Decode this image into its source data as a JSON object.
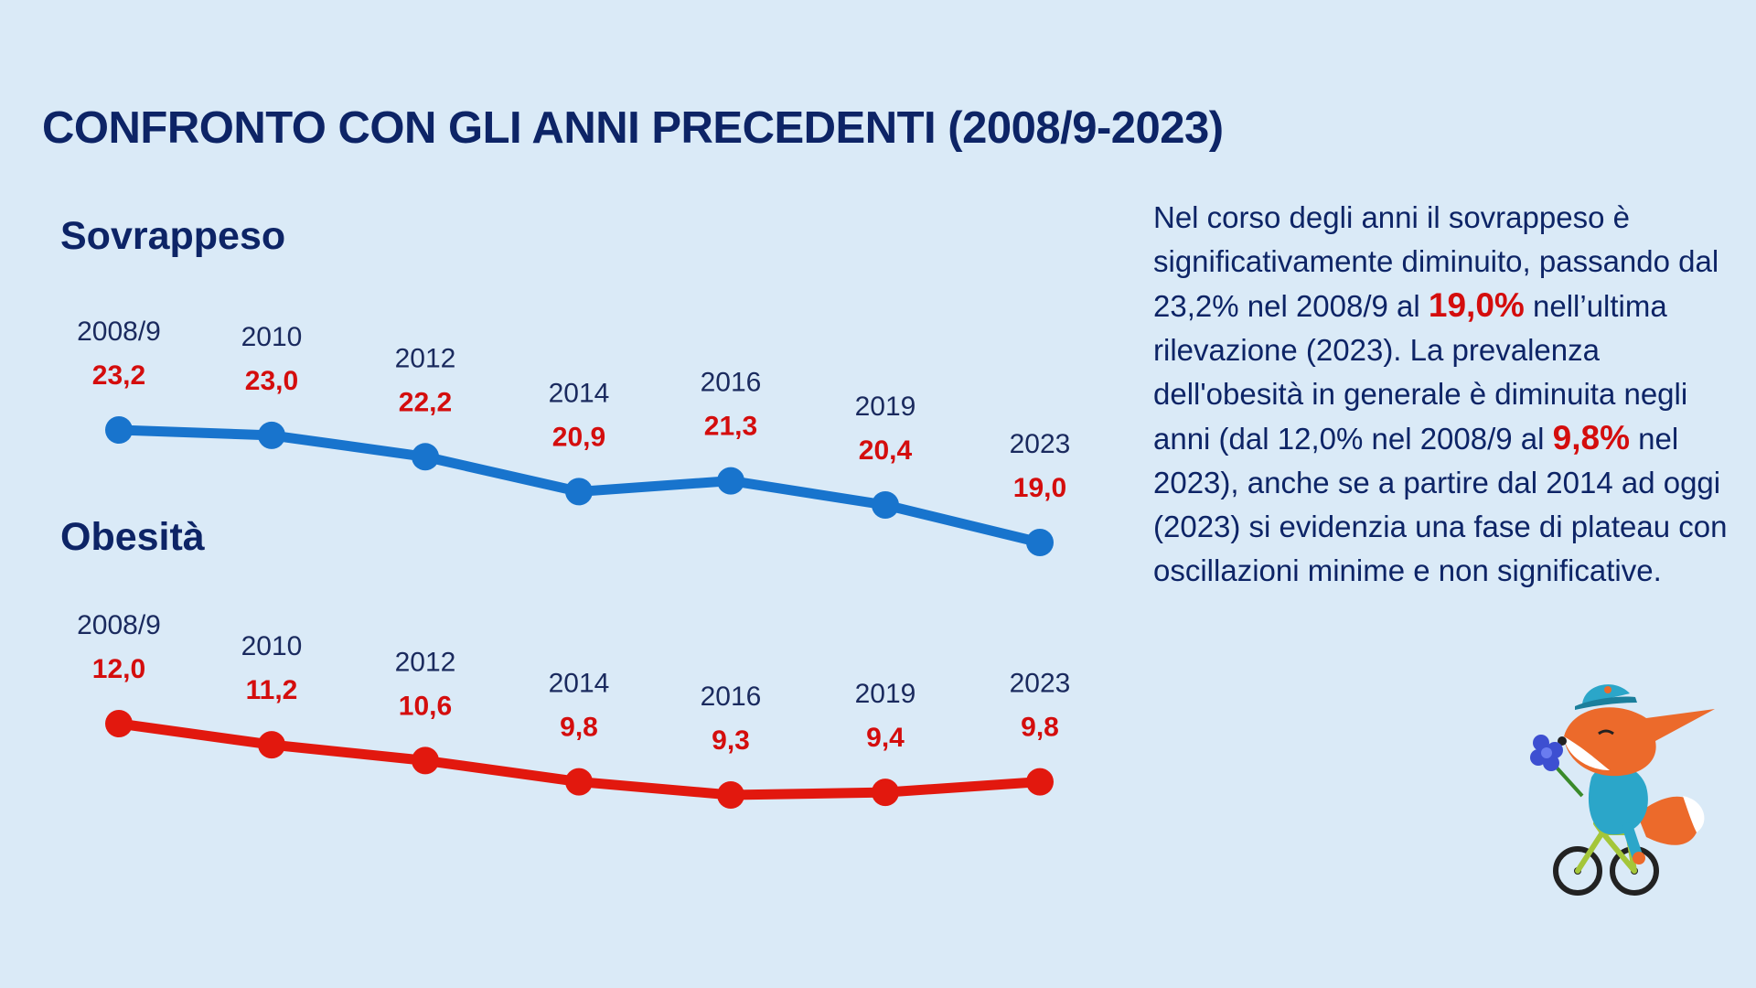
{
  "title": "CONFRONTO CON GLI ANNI PRECEDENTI (2008/9-2023)",
  "chart_data": [
    {
      "type": "line",
      "title": "Sovrappeso",
      "categories": [
        "2008/9",
        "2010",
        "2012",
        "2014",
        "2016",
        "2019",
        "2023"
      ],
      "values": [
        23.2,
        23.0,
        22.2,
        20.9,
        21.3,
        20.4,
        19.0
      ],
      "value_labels": [
        "23,2",
        "23,0",
        "22,2",
        "20,9",
        "21,3",
        "20,4",
        "19,0"
      ],
      "color": "#1874cd",
      "axes": "hidden",
      "grid": false
    },
    {
      "type": "line",
      "title": "Obesità",
      "categories": [
        "2008/9",
        "2010",
        "2012",
        "2014",
        "2016",
        "2019",
        "2023"
      ],
      "values": [
        12.0,
        11.2,
        10.6,
        9.8,
        9.3,
        9.4,
        9.8
      ],
      "value_labels": [
        "12,0",
        "11,2",
        "10,6",
        "9,8",
        "9,3",
        "9,4",
        "9,8"
      ],
      "color": "#e2180e",
      "axes": "hidden",
      "grid": false
    }
  ],
  "description": {
    "part1": "Nel corso degli anni il sovrappeso è significativamente diminuito, passando dal 23,2% nel 2008/9 al ",
    "highlight1": "19,0%",
    "part2": " nell’ultima rilevazione (2023). La prevalenza dell'obesità in generale è diminuita negli anni (dal 12,0% nel 2008/9 al ",
    "highlight2": "9,8%",
    "part3": " nel 2023), anche se a partire dal 2014 ad oggi (2023) si evidenzia una fase di plateau con oscillazioni minime e non significative."
  },
  "colors": {
    "background": "#daeaf7",
    "title": "#0d2466",
    "highlight": "#d40d0d"
  },
  "mascot": "fox-on-bicycle-illustration"
}
